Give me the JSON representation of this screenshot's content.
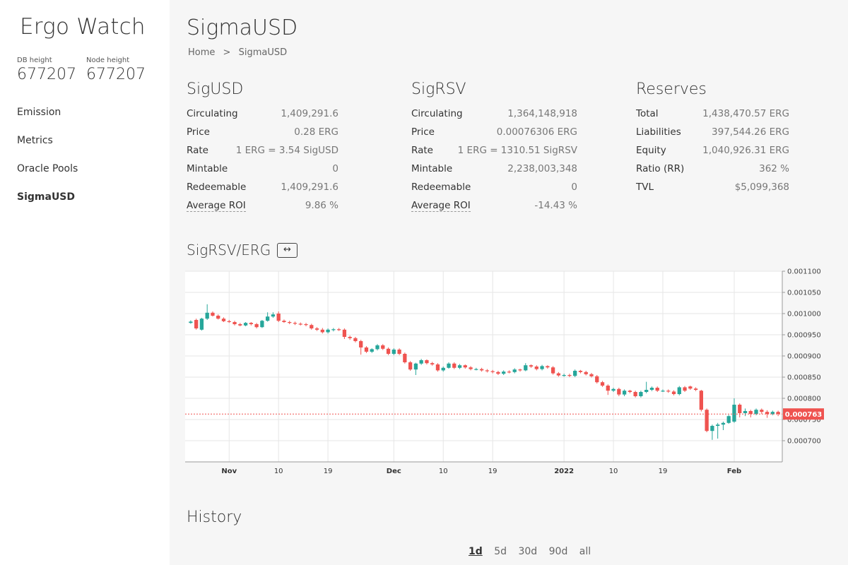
{
  "sidebar": {
    "brand": "Ergo Watch",
    "db_height_label": "DB height",
    "db_height": "677207",
    "node_height_label": "Node height",
    "node_height": "677207",
    "items": [
      {
        "label": "Emission"
      },
      {
        "label": "Metrics"
      },
      {
        "label": "Oracle Pools"
      },
      {
        "label": "SigmaUSD",
        "active": true
      }
    ]
  },
  "header": {
    "title": "SigmaUSD",
    "breadcrumb": {
      "home": "Home",
      "separator": ">",
      "current": "SigmaUSD"
    }
  },
  "sigusd": {
    "title": "SigUSD",
    "rows": [
      {
        "k": "Circulating",
        "v": "1,409,291.6"
      },
      {
        "k": "Price",
        "v": "0.28 ERG"
      },
      {
        "k": "Rate",
        "v": "1 ERG = 3.54 SigUSD"
      },
      {
        "k": "Mintable",
        "v": "0"
      },
      {
        "k": "Redeemable",
        "v": "1,409,291.6"
      },
      {
        "k": "Average ROI",
        "v": "9.86 %"
      }
    ]
  },
  "sigrsv": {
    "title": "SigRSV",
    "rows": [
      {
        "k": "Circulating",
        "v": "1,364,148,918"
      },
      {
        "k": "Price",
        "v": "0.00076306 ERG"
      },
      {
        "k": "Rate",
        "v": "1 ERG = 1310.51 SigRSV"
      },
      {
        "k": "Mintable",
        "v": "2,238,003,348"
      },
      {
        "k": "Redeemable",
        "v": "0"
      },
      {
        "k": "Average ROI",
        "v": "-14.43 %"
      }
    ]
  },
  "reserves": {
    "title": "Reserves",
    "rows": [
      {
        "k": "Total",
        "v": "1,438,470.57 ERG"
      },
      {
        "k": "Liabilities",
        "v": "397,544.26 ERG"
      },
      {
        "k": "Equity",
        "v": "1,040,926.31 ERG"
      },
      {
        "k": "Ratio (RR)",
        "v": "362 %"
      },
      {
        "k": "TVL",
        "v": "$5,099,368"
      }
    ]
  },
  "chart_section": {
    "title": "SigRSV/ERG",
    "toggle_label": "↔"
  },
  "chart_data": {
    "type": "candlestick",
    "colors": {
      "up": "#26a69a",
      "down": "#ef5350",
      "grid": "#e6e6e6",
      "axis": "#666666"
    },
    "ylim": [
      0.00065,
      0.0011
    ],
    "y_ticks": [
      "0.001100",
      "0.001050",
      "0.001000",
      "0.000950",
      "0.000900",
      "0.000850",
      "0.000800",
      "0.000750",
      "0.000700"
    ],
    "x_ticks": [
      {
        "label": "Nov",
        "index": 7,
        "bold": true
      },
      {
        "label": "10",
        "index": 16,
        "bold": false
      },
      {
        "label": "19",
        "index": 25,
        "bold": false
      },
      {
        "label": "Dec",
        "index": 37,
        "bold": true
      },
      {
        "label": "10",
        "index": 46,
        "bold": false
      },
      {
        "label": "19",
        "index": 55,
        "bold": false
      },
      {
        "label": "2022",
        "index": 68,
        "bold": true
      },
      {
        "label": "10",
        "index": 77,
        "bold": false
      },
      {
        "label": "19",
        "index": 86,
        "bold": false
      },
      {
        "label": "Feb",
        "index": 99,
        "bold": true
      }
    ],
    "last_price_label": "0.000763",
    "last_price": 0.000763,
    "candles": [
      [
        0.000978,
        0.000981,
        0.000984,
        0.000976
      ],
      [
        0.000985,
        0.000965,
        0.000988,
        0.000962
      ],
      [
        0.000962,
        0.000988,
        0.00099,
        0.00096
      ],
      [
        0.000988,
        0.001002,
        0.001022,
        0.000985
      ],
      [
        0.001002,
        0.000995,
        0.001005,
        0.000993
      ],
      [
        0.000995,
        0.000988,
        0.000998,
        0.000986
      ],
      [
        0.000988,
        0.000982,
        0.000991,
        0.00098
      ],
      [
        0.000982,
        0.00098,
        0.000985,
        0.000978
      ],
      [
        0.00098,
        0.000975,
        0.000983,
        0.000972
      ],
      [
        0.000975,
        0.000972,
        0.000978,
        0.00097
      ],
      [
        0.000972,
        0.000978,
        0.00098,
        0.00097
      ],
      [
        0.000978,
        0.000975,
        0.00098,
        0.000972
      ],
      [
        0.000975,
        0.000968,
        0.000978,
        0.000965
      ],
      [
        0.000968,
        0.000983,
        0.000985,
        0.000966
      ],
      [
        0.000983,
        0.000993,
        0.001003,
        0.000981
      ],
      [
        0.000993,
        0.000998,
        0.001003,
        0.00099
      ],
      [
        0.001,
        0.000983,
        0.001005,
        0.00098
      ],
      [
        0.000983,
        0.00098,
        0.000986,
        0.000978
      ],
      [
        0.00098,
        0.000978,
        0.000983,
        0.000975
      ],
      [
        0.000978,
        0.000976,
        0.000981,
        0.000973
      ],
      [
        0.000976,
        0.000975,
        0.000979,
        0.000972
      ],
      [
        0.000975,
        0.000973,
        0.000978,
        0.00097
      ],
      [
        0.000973,
        0.000965,
        0.000976,
        0.000962
      ],
      [
        0.000965,
        0.000962,
        0.000968,
        0.000959
      ],
      [
        0.000962,
        0.000956,
        0.000966,
        0.000953
      ],
      [
        0.000956,
        0.000962,
        0.000965,
        0.000953
      ],
      [
        0.000962,
        0.000963,
        0.000966,
        0.000958
      ],
      [
        0.000963,
        0.000962,
        0.000966,
        0.000959
      ],
      [
        0.000962,
        0.000945,
        0.000965,
        0.00094
      ],
      [
        0.000945,
        0.000942,
        0.000948,
        0.000938
      ],
      [
        0.000942,
        0.000935,
        0.000945,
        0.000932
      ],
      [
        0.000935,
        0.00092,
        0.000938,
        0.000903
      ],
      [
        0.00092,
        0.00091,
        0.000923,
        0.000907
      ],
      [
        0.00091,
        0.000916,
        0.000918,
        0.000907
      ],
      [
        0.000916,
        0.000925,
        0.000928,
        0.000913
      ],
      [
        0.000925,
        0.000917,
        0.000928,
        0.000914
      ],
      [
        0.000917,
        0.000905,
        0.00092,
        0.000902
      ],
      [
        0.000905,
        0.000915,
        0.000918,
        0.000902
      ],
      [
        0.000915,
        0.000905,
        0.000918,
        0.000902
      ],
      [
        0.000905,
        0.000885,
        0.000908,
        0.000882
      ],
      [
        0.000885,
        0.000868,
        0.000888,
        0.000865
      ],
      [
        0.000868,
        0.000882,
        0.000884,
        0.000855
      ],
      [
        0.000882,
        0.00089,
        0.000893,
        0.000879
      ],
      [
        0.00089,
        0.000883,
        0.000892,
        0.00088
      ],
      [
        0.000883,
        0.00088,
        0.000886,
        0.000877
      ],
      [
        0.00088,
        0.000866,
        0.000883,
        0.000863
      ],
      [
        0.000866,
        0.000872,
        0.000875,
        0.000863
      ],
      [
        0.000872,
        0.000882,
        0.000885,
        0.00087
      ],
      [
        0.000882,
        0.000872,
        0.000885,
        0.000869
      ],
      [
        0.000872,
        0.000878,
        0.000881,
        0.000869
      ],
      [
        0.000878,
        0.000873,
        0.00088,
        0.00087
      ],
      [
        0.000873,
        0.000869,
        0.000876,
        0.000866
      ],
      [
        0.000869,
        0.000869,
        0.000872,
        0.000866
      ],
      [
        0.000869,
        0.000866,
        0.000872,
        0.000863
      ],
      [
        0.000866,
        0.000864,
        0.000869,
        0.000861
      ],
      [
        0.000864,
        0.000862,
        0.000867,
        0.000859
      ],
      [
        0.000862,
        0.000858,
        0.000865,
        0.000855
      ],
      [
        0.000858,
        0.000863,
        0.000866,
        0.000855
      ],
      [
        0.000863,
        0.000862,
        0.000866,
        0.000859
      ],
      [
        0.000862,
        0.000868,
        0.000871,
        0.000859
      ],
      [
        0.000868,
        0.000866,
        0.00087,
        0.000863
      ],
      [
        0.000866,
        0.000878,
        0.000883,
        0.000864
      ],
      [
        0.000878,
        0.000875,
        0.00088,
        0.000872
      ],
      [
        0.000875,
        0.000869,
        0.000878,
        0.000866
      ],
      [
        0.000869,
        0.000876,
        0.000879,
        0.000866
      ],
      [
        0.000876,
        0.000873,
        0.000878,
        0.00087
      ],
      [
        0.000873,
        0.000859,
        0.000876,
        0.000856
      ],
      [
        0.000859,
        0.000854,
        0.000862,
        0.000851
      ],
      [
        0.000854,
        0.000855,
        0.000858,
        0.000851
      ],
      [
        0.000855,
        0.000853,
        0.000858,
        0.00085
      ],
      [
        0.000853,
        0.000865,
        0.000868,
        0.00085
      ],
      [
        0.000865,
        0.000862,
        0.000867,
        0.000859
      ],
      [
        0.000862,
        0.000857,
        0.000865,
        0.000854
      ],
      [
        0.000857,
        0.000852,
        0.00086,
        0.000849
      ],
      [
        0.000852,
        0.000838,
        0.000855,
        0.000835
      ],
      [
        0.000838,
        0.00083,
        0.000841,
        0.000827
      ],
      [
        0.00083,
        0.000818,
        0.000833,
        0.000808
      ],
      [
        0.000818,
        0.000822,
        0.000825,
        0.000815
      ],
      [
        0.000822,
        0.000809,
        0.000825,
        0.000805
      ],
      [
        0.000809,
        0.000818,
        0.000821,
        0.000805
      ],
      [
        0.000818,
        0.000815,
        0.00082,
        0.000812
      ],
      [
        0.000815,
        0.000805,
        0.000818,
        0.000802
      ],
      [
        0.000805,
        0.000815,
        0.000818,
        0.000802
      ],
      [
        0.000815,
        0.00082,
        0.000839,
        0.000812
      ],
      [
        0.00082,
        0.000825,
        0.000828,
        0.000817
      ],
      [
        0.000825,
        0.000818,
        0.000828,
        0.000815
      ],
      [
        0.000818,
        0.000818,
        0.000821,
        0.000815
      ],
      [
        0.000818,
        0.000816,
        0.000821,
        0.000813
      ],
      [
        0.000816,
        0.00081,
        0.000819,
        0.000807
      ],
      [
        0.00081,
        0.000826,
        0.000829,
        0.000807
      ],
      [
        0.000826,
        0.000818,
        0.000829,
        0.000815
      ],
      [
        0.000828,
        0.000823,
        0.00083,
        0.00082
      ],
      [
        0.000823,
        0.00082,
        0.000826,
        0.000817
      ],
      [
        0.000818,
        0.000773,
        0.00082,
        0.000769
      ],
      [
        0.000773,
        0.000723,
        0.000776,
        0.00072
      ],
      [
        0.000723,
        0.000735,
        0.000738,
        0.000702
      ],
      [
        0.000735,
        0.000738,
        0.000742,
        0.000705
      ],
      [
        0.000738,
        0.000742,
        0.000745,
        0.000725
      ],
      [
        0.000742,
        0.000758,
        0.000761,
        0.00074
      ],
      [
        0.000745,
        0.000785,
        0.0008,
        0.000742
      ],
      [
        0.000785,
        0.000765,
        0.000788,
        0.000755
      ],
      [
        0.000765,
        0.00077,
        0.000776,
        0.000758
      ],
      [
        0.00077,
        0.000763,
        0.000773,
        0.000755
      ],
      [
        0.000763,
        0.000773,
        0.000776,
        0.00076
      ],
      [
        0.000773,
        0.000768,
        0.000776,
        0.000763
      ],
      [
        0.000768,
        0.000763,
        0.000772,
        0.000754
      ],
      [
        0.000763,
        0.000768,
        0.000771,
        0.00076
      ],
      [
        0.000768,
        0.000763,
        0.000771,
        0.000758
      ]
    ]
  },
  "history": {
    "title": "History",
    "ranges": [
      {
        "label": "1d",
        "active": true
      },
      {
        "label": "5d"
      },
      {
        "label": "30d"
      },
      {
        "label": "90d"
      },
      {
        "label": "all"
      }
    ]
  }
}
